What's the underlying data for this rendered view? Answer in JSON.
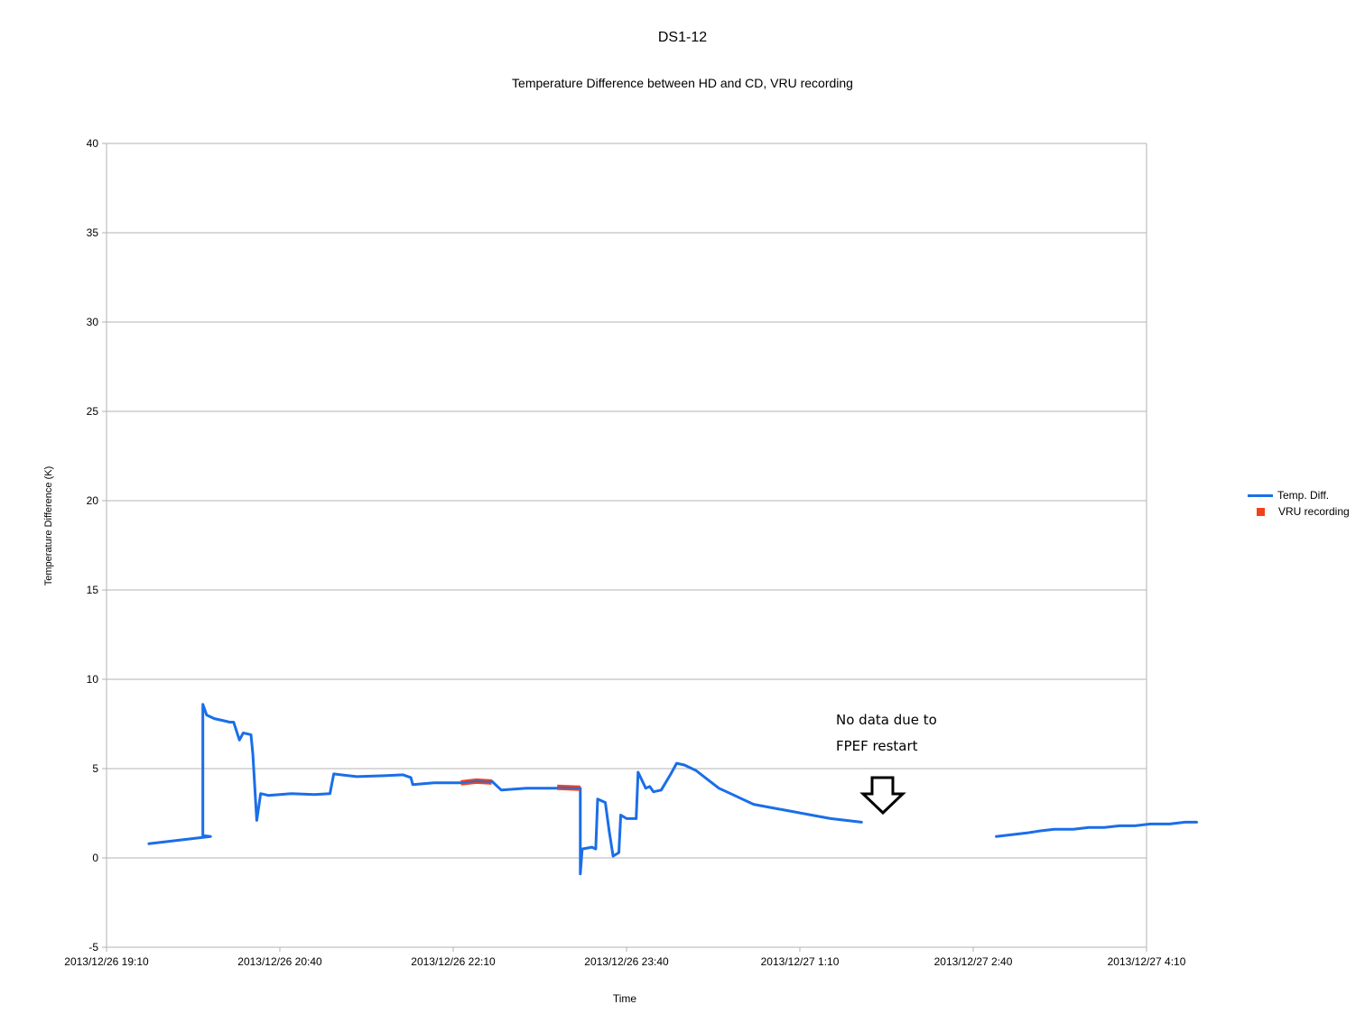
{
  "chart_data": {
    "type": "line",
    "title": "DS1-12",
    "subtitle": "Temperature Difference between HD and CD, VRU recording",
    "xlabel": "Time",
    "ylabel": "Temperature Difference (K)",
    "ylim": [
      -5,
      40
    ],
    "yticks": [
      -5,
      0,
      5,
      10,
      15,
      20,
      25,
      30,
      35,
      40
    ],
    "xlim": [
      "2013/12/26 19:10",
      "2013/12/27 4:10"
    ],
    "xtick_labels": [
      "2013/12/26 19:10",
      "2013/12/26 20:40",
      "2013/12/26 22:10",
      "2013/12/26 23:40",
      "2013/12/27 1:10",
      "2013/12/27 2:40",
      "2013/12/27 4:10"
    ],
    "grid": "horizontal",
    "legend_position": "right",
    "series": [
      {
        "name": "Temp. Diff.",
        "color": "#1a6ee8",
        "segments": [
          [
            [
              "2013/12/26 19:32",
              0.8
            ],
            [
              "2013/12/26 19:40",
              0.9
            ],
            [
              "2013/12/26 19:48",
              1.0
            ],
            [
              "2013/12/26 19:56",
              1.1
            ],
            [
              "2013/12/26 20:04",
              1.2
            ],
            [
              "2013/12/26 20:00",
              1.25
            ],
            [
              "2013/12/26 20:00",
              1.3
            ],
            [
              "2013/12/26 20:00",
              8.6
            ],
            [
              "2013/12/26 20:02",
              8.0
            ],
            [
              "2013/12/26 20:06",
              7.8
            ],
            [
              "2013/12/26 20:10",
              7.7
            ],
            [
              "2013/12/26 20:14",
              7.6
            ],
            [
              "2013/12/26 20:16",
              7.6
            ],
            [
              "2013/12/26 20:19",
              6.6
            ],
            [
              "2013/12/26 20:21",
              7.0
            ],
            [
              "2013/12/26 20:25",
              6.9
            ],
            [
              "2013/12/26 20:26",
              5.8
            ],
            [
              "2013/12/26 20:28",
              2.1
            ],
            [
              "2013/12/26 20:30",
              3.6
            ],
            [
              "2013/12/26 20:34",
              3.5
            ],
            [
              "2013/12/26 20:46",
              3.6
            ],
            [
              "2013/12/26 20:58",
              3.55
            ],
            [
              "2013/12/26 21:06",
              3.6
            ],
            [
              "2013/12/26 21:08",
              4.7
            ],
            [
              "2013/12/26 21:20",
              4.55
            ],
            [
              "2013/12/26 21:34",
              4.6
            ],
            [
              "2013/12/26 21:44",
              4.65
            ],
            [
              "2013/12/26 21:48",
              4.5
            ],
            [
              "2013/12/26 21:49",
              4.1
            ],
            [
              "2013/12/26 22:00",
              4.2
            ],
            [
              "2013/12/26 22:14",
              4.2
            ],
            [
              "2013/12/26 22:24",
              4.25
            ],
            [
              "2013/12/26 22:30",
              4.3
            ],
            [
              "2013/12/26 22:32",
              4.1
            ],
            [
              "2013/12/26 22:35",
              3.8
            ],
            [
              "2013/12/26 22:48",
              3.9
            ],
            [
              "2013/12/26 23:04",
              3.9
            ],
            [
              "2013/12/26 23:16",
              3.9
            ],
            [
              "2013/12/26 23:16",
              -0.9
            ],
            [
              "2013/12/26 23:17",
              0.5
            ],
            [
              "2013/12/26 23:22",
              0.6
            ],
            [
              "2013/12/26 23:24",
              0.5
            ],
            [
              "2013/12/26 23:25",
              3.3
            ],
            [
              "2013/12/26 23:29",
              3.1
            ],
            [
              "2013/12/26 23:31",
              1.5
            ],
            [
              "2013/12/26 23:33",
              0.1
            ],
            [
              "2013/12/26 23:36",
              0.3
            ],
            [
              "2013/12/26 23:37",
              2.4
            ],
            [
              "2013/12/26 23:40",
              2.2
            ],
            [
              "2013/12/26 23:45",
              2.2
            ],
            [
              "2013/12/26 23:46",
              4.8
            ],
            [
              "2013/12/26 23:50",
              3.9
            ],
            [
              "2013/12/26 23:52",
              4.0
            ],
            [
              "2013/12/26 23:54",
              3.7
            ],
            [
              "2013/12/26 23:58",
              3.8
            ],
            [
              "2013/12/27 0:03",
              4.7
            ],
            [
              "2013/12/27 0:06",
              5.3
            ],
            [
              "2013/12/27 0:10",
              5.2
            ],
            [
              "2013/12/27 0:16",
              4.9
            ],
            [
              "2013/12/27 0:22",
              4.4
            ],
            [
              "2013/12/27 0:28",
              3.9
            ],
            [
              "2013/12/27 0:34",
              3.6
            ],
            [
              "2013/12/27 0:40",
              3.3
            ],
            [
              "2013/12/27 0:46",
              3.0
            ],
            [
              "2013/12/27 0:56",
              2.8
            ],
            [
              "2013/12/27 1:06",
              2.6
            ],
            [
              "2013/12/27 1:16",
              2.4
            ],
            [
              "2013/12/27 1:26",
              2.2
            ],
            [
              "2013/12/27 1:34",
              2.1
            ],
            [
              "2013/12/27 1:42",
              2.0
            ]
          ],
          [
            [
              "2013/12/27 2:52",
              1.2
            ],
            [
              "2013/12/27 3:00",
              1.3
            ],
            [
              "2013/12/27 3:08",
              1.4
            ],
            [
              "2013/12/27 3:14",
              1.5
            ],
            [
              "2013/12/27 3:22",
              1.6
            ],
            [
              "2013/12/27 3:32",
              1.6
            ],
            [
              "2013/12/27 3:40",
              1.7
            ],
            [
              "2013/12/27 3:48",
              1.7
            ],
            [
              "2013/12/27 3:56",
              1.8
            ],
            [
              "2013/12/27 4:04",
              1.8
            ],
            [
              "2013/12/27 4:12",
              1.9
            ],
            [
              "2013/12/27 4:22",
              1.9
            ],
            [
              "2013/12/27 4:30",
              2.0
            ],
            [
              "2013/12/27 4:36",
              2.0
            ]
          ]
        ]
      },
      {
        "name": "VRU recording",
        "color": "#f2421b",
        "segments": [
          [
            [
              "2013/12/26 22:14",
              4.2
            ],
            [
              "2013/12/26 22:22",
              4.3
            ],
            [
              "2013/12/26 22:30",
              4.25
            ]
          ],
          [
            [
              "2013/12/26 23:04",
              3.95
            ],
            [
              "2013/12/26 23:16",
              3.9
            ]
          ]
        ]
      }
    ]
  },
  "annotation": {
    "line1": "No data due to",
    "line2": "FPEF restart"
  }
}
